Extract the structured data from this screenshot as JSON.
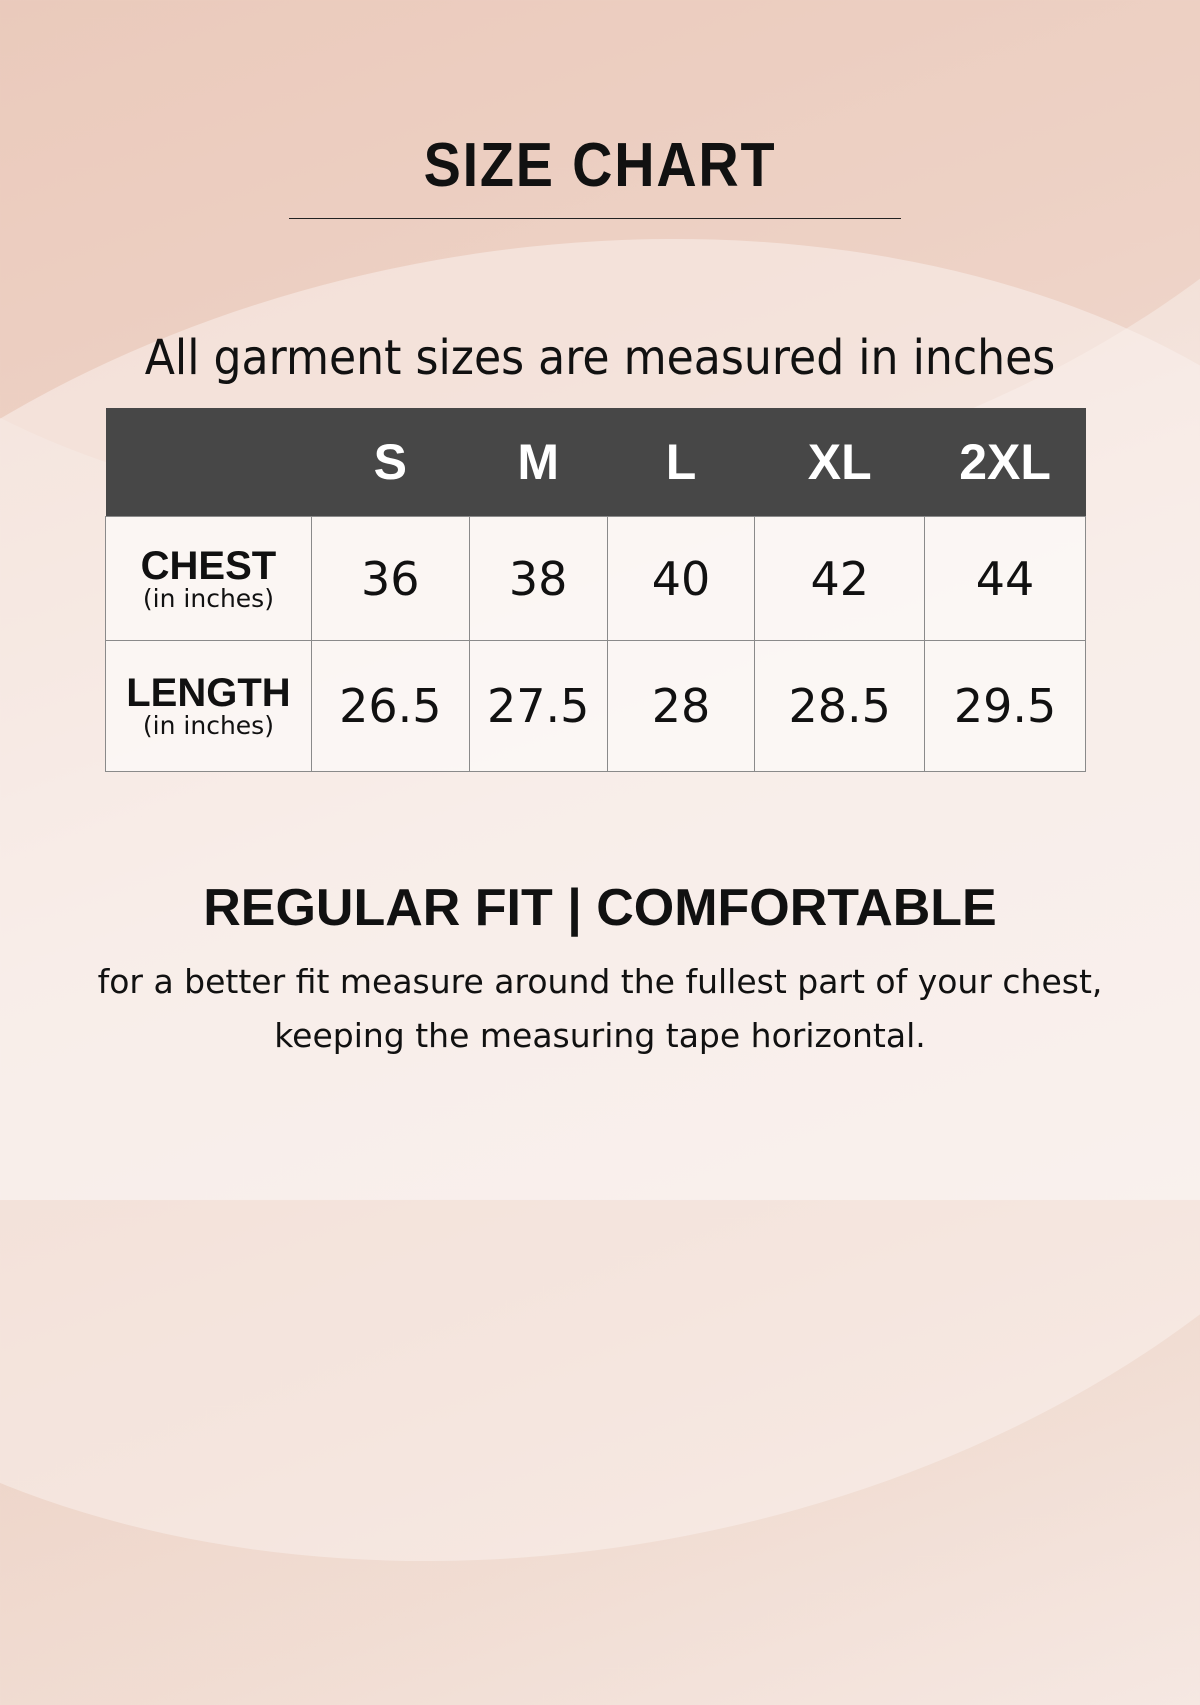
{
  "title": "SIZE CHART",
  "subtitle": "All garment sizes are measured in inches",
  "table": {
    "headers": [
      "",
      "S",
      "M",
      "L",
      "XL",
      "2XL"
    ],
    "rows": [
      {
        "label": "CHEST",
        "unit": "(in inches)",
        "values": [
          "36",
          "38",
          "40",
          "42",
          "44"
        ]
      },
      {
        "label": "LENGTH",
        "unit": "(in inches)",
        "values": [
          "26.5",
          "27.5",
          "28",
          "28.5",
          "29.5"
        ]
      }
    ]
  },
  "fit": "REGULAR FIT | COMFORTABLE",
  "note": "for a better fit measure around the fullest part of your chest, keeping the measuring tape horizontal.",
  "colors": {
    "header_bg": "#474747",
    "header_text": "#ffffff",
    "background": "#f3e2da"
  }
}
